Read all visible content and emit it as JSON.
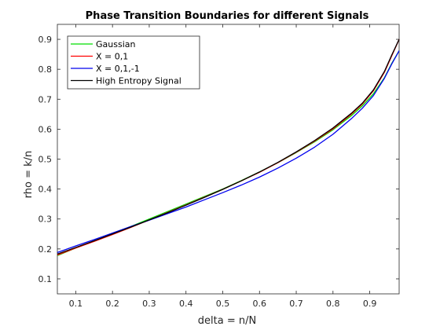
{
  "chart_data": {
    "type": "line",
    "title": "Phase Transition Boundaries for different Signals",
    "xlabel": "delta = n/N",
    "ylabel": "rho = k/n",
    "xlim": [
      0.05,
      0.98
    ],
    "ylim": [
      0.05,
      0.95
    ],
    "xticks": [
      0.1,
      0.2,
      0.3,
      0.4,
      0.5,
      0.6,
      0.7,
      0.8,
      0.9
    ],
    "yticks": [
      0.1,
      0.2,
      0.3,
      0.4,
      0.5,
      0.6,
      0.7,
      0.8,
      0.9
    ],
    "grid": false,
    "legend_position": "top-left",
    "series": [
      {
        "name": "Gaussian",
        "color": "#00dd00",
        "x": [
          0.05,
          0.1,
          0.15,
          0.2,
          0.25,
          0.3,
          0.35,
          0.4,
          0.45,
          0.5,
          0.55,
          0.6,
          0.65,
          0.7,
          0.75,
          0.8,
          0.85,
          0.88,
          0.91,
          0.94,
          0.96,
          0.98
        ],
        "y": [
          0.178,
          0.203,
          0.226,
          0.25,
          0.275,
          0.3,
          0.325,
          0.35,
          0.375,
          0.4,
          0.428,
          0.457,
          0.488,
          0.522,
          0.558,
          0.598,
          0.645,
          0.678,
          0.718,
          0.772,
          0.82,
          0.862
        ]
      },
      {
        "name": "X = 0,1",
        "color": "#ff0000",
        "x": [
          0.05,
          0.1,
          0.15,
          0.2,
          0.25,
          0.3,
          0.35,
          0.4,
          0.45,
          0.5,
          0.55,
          0.6,
          0.65,
          0.7,
          0.75,
          0.8,
          0.85,
          0.88,
          0.91,
          0.94,
          0.96,
          0.98
        ],
        "y": [
          0.18,
          0.203,
          0.225,
          0.248,
          0.272,
          0.297,
          0.322,
          0.347,
          0.373,
          0.399,
          0.427,
          0.456,
          0.488,
          0.523,
          0.56,
          0.601,
          0.65,
          0.684,
          0.728,
          0.79,
          0.845,
          0.9
        ]
      },
      {
        "name": "X = 0,1,-1",
        "color": "#0000ee",
        "x": [
          0.05,
          0.1,
          0.15,
          0.2,
          0.25,
          0.3,
          0.35,
          0.4,
          0.45,
          0.5,
          0.55,
          0.6,
          0.65,
          0.7,
          0.75,
          0.8,
          0.85,
          0.88,
          0.91,
          0.94,
          0.96,
          0.98
        ],
        "y": [
          0.188,
          0.21,
          0.231,
          0.253,
          0.275,
          0.296,
          0.318,
          0.34,
          0.364,
          0.388,
          0.413,
          0.44,
          0.47,
          0.503,
          0.54,
          0.583,
          0.635,
          0.67,
          0.712,
          0.77,
          0.818,
          0.862
        ]
      },
      {
        "name": "High Entropy Signal",
        "color": "#000000",
        "x": [
          0.05,
          0.1,
          0.15,
          0.2,
          0.25,
          0.3,
          0.35,
          0.4,
          0.45,
          0.5,
          0.55,
          0.6,
          0.65,
          0.7,
          0.75,
          0.8,
          0.85,
          0.88,
          0.91,
          0.94,
          0.96,
          0.98
        ],
        "y": [
          0.183,
          0.205,
          0.227,
          0.25,
          0.273,
          0.297,
          0.321,
          0.346,
          0.372,
          0.399,
          0.427,
          0.457,
          0.489,
          0.524,
          0.562,
          0.604,
          0.653,
          0.687,
          0.731,
          0.793,
          0.848,
          0.9
        ]
      }
    ]
  }
}
